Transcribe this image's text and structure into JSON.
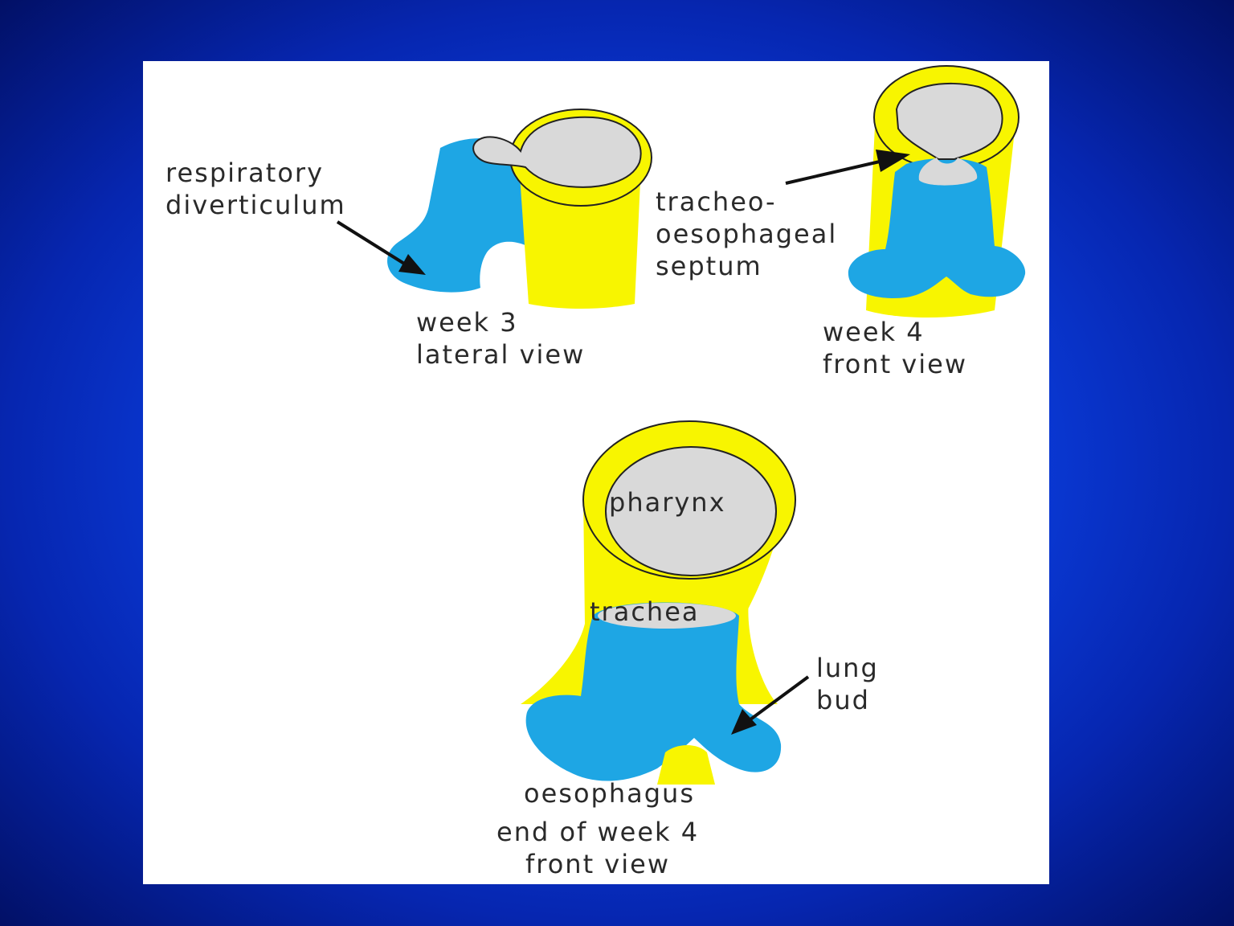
{
  "colors": {
    "yellow": "#f8f500",
    "blue": "#1ea6e4",
    "lumen": "#d9d9d9",
    "outline": "#222222",
    "page_bg": "#0b3fe0"
  },
  "labels": {
    "respiratory": "respiratory",
    "diverticulum": "diverticulum",
    "week3_line1": "week 3",
    "week3_line2": "lateral view",
    "septum_line1": "tracheo-",
    "septum_line2": "oesophageal",
    "septum_line3": "septum",
    "week4_line1": "week 4",
    "week4_line2": "front view",
    "pharynx": "pharynx",
    "trachea": "trachea",
    "lung_line1": "lung",
    "lung_line2": "bud",
    "oesophagus": "oesophagus",
    "end_line1": "end of week 4",
    "end_line2": "front view"
  }
}
